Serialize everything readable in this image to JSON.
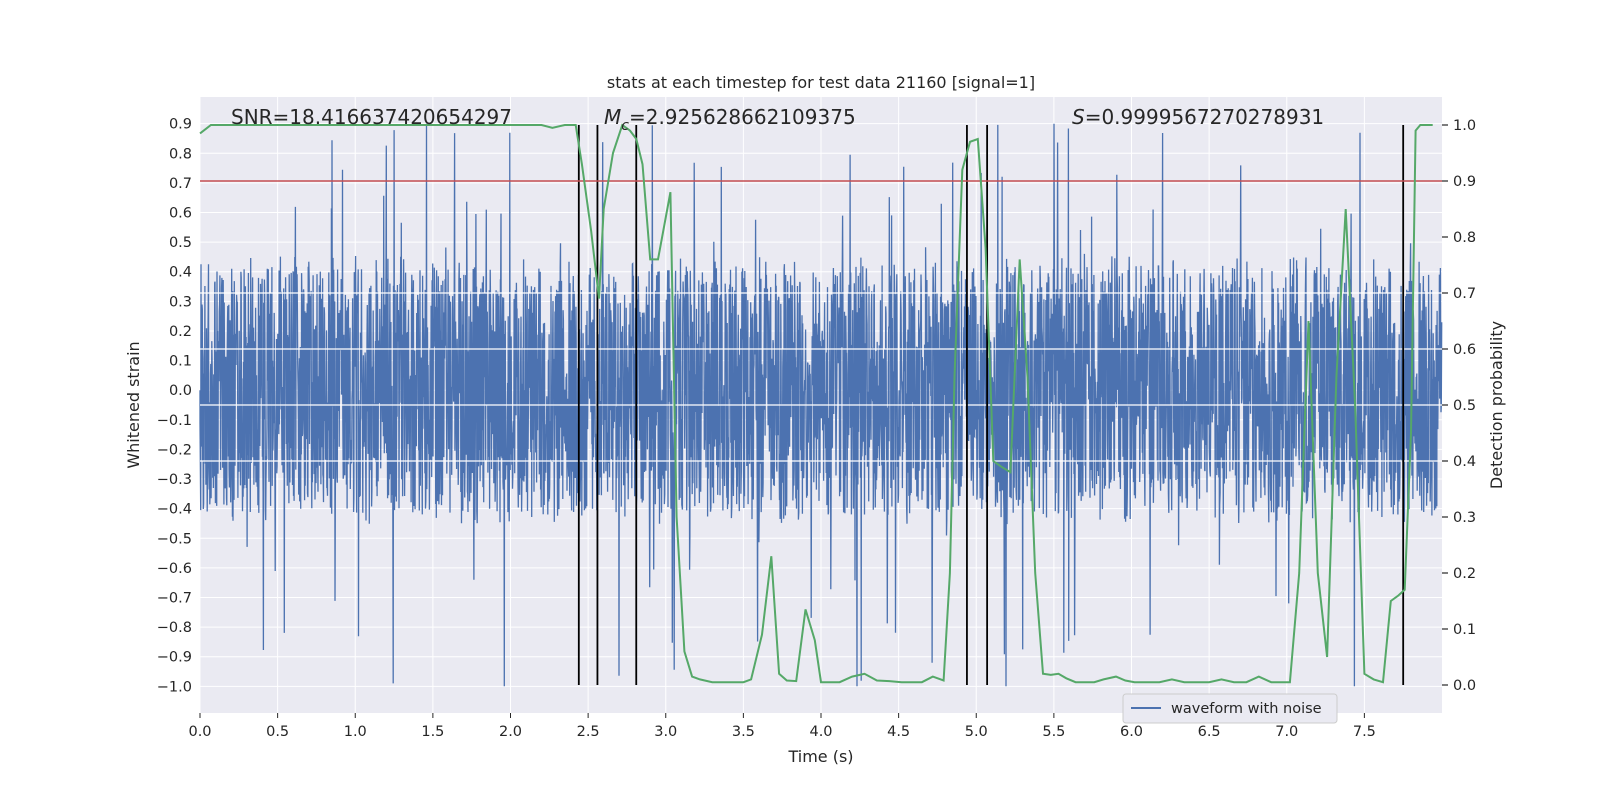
{
  "chart_data": {
    "type": "line",
    "title": "stats at each timestep for test data 21160 [signal=1]",
    "xlabel": "Time (s)",
    "ylabel_left": "Whitened strain",
    "ylabel_right": "Detection probability",
    "xlim": [
      0.0,
      8.0
    ],
    "ylim_left": [
      -1.09,
      0.99
    ],
    "ylim_right": [
      -0.05,
      1.05
    ],
    "xticks": [
      "0.0",
      "0.5",
      "1.0",
      "1.5",
      "2.0",
      "2.5",
      "3.0",
      "3.5",
      "4.0",
      "4.5",
      "5.0",
      "5.5",
      "6.0",
      "6.5",
      "7.0",
      "7.5"
    ],
    "yticks_left": [
      "0.9",
      "0.8",
      "0.7",
      "0.6",
      "0.5",
      "0.4",
      "0.3",
      "0.2",
      "0.1",
      "0.0",
      "−0.1",
      "−0.2",
      "−0.3",
      "−0.4",
      "−0.5",
      "−0.6",
      "−0.7",
      "−0.8",
      "−0.9",
      "−1.0"
    ],
    "yticks_right": [
      "1.0",
      "0.9",
      "0.8",
      "0.7",
      "0.6",
      "0.5",
      "0.4",
      "0.3",
      "0.2",
      "0.1",
      "0.0"
    ],
    "annotations": {
      "snr": "SNR=18.416637420654297",
      "mc_symbol": "M",
      "mc_sub": "c",
      "mc_value": "=2.925628662109375",
      "s_symbol": "S",
      "s_value": "=0.9999567270278931"
    },
    "threshold": {
      "value": 0.9,
      "axis": "right",
      "color": "#c44e52"
    },
    "vertical_lines": [
      2.44,
      2.56,
      2.81,
      4.94,
      5.07,
      7.75
    ],
    "waveform": {
      "name": "waveform with noise",
      "color": "#4c72b0",
      "note": "dense noise band, core roughly −0.42..0.42 with spikes up to about 0.9 and down to about −1.0"
    },
    "probability": {
      "color": "#55a868",
      "x": [
        0.0,
        0.07,
        0.2,
        0.4,
        0.6,
        0.8,
        1.0,
        1.2,
        1.4,
        1.6,
        1.8,
        2.0,
        2.2,
        2.27,
        2.35,
        2.42,
        2.46,
        2.52,
        2.57,
        2.6,
        2.66,
        2.72,
        2.77,
        2.81,
        2.85,
        2.9,
        2.95,
        2.99,
        3.03,
        3.07,
        3.12,
        3.17,
        3.22,
        3.3,
        3.4,
        3.5,
        3.55,
        3.62,
        3.68,
        3.73,
        3.78,
        3.84,
        3.9,
        3.96,
        4.0,
        4.06,
        4.12,
        4.2,
        4.28,
        4.36,
        4.44,
        4.52,
        4.58,
        4.65,
        4.72,
        4.79,
        4.83,
        4.86,
        4.91,
        4.96,
        5.01,
        5.06,
        5.11,
        5.16,
        5.22,
        5.28,
        5.33,
        5.38,
        5.43,
        5.48,
        5.53,
        5.58,
        5.64,
        5.7,
        5.76,
        5.82,
        5.9,
        5.96,
        6.02,
        6.1,
        6.18,
        6.26,
        6.34,
        6.42,
        6.5,
        6.58,
        6.66,
        6.74,
        6.82,
        6.9,
        6.96,
        7.02,
        7.08,
        7.14,
        7.2,
        7.26,
        7.32,
        7.38,
        7.44,
        7.5,
        7.56,
        7.62,
        7.67,
        7.72,
        7.76,
        7.8,
        7.83,
        7.86,
        7.9,
        7.94
      ],
      "values": [
        0.985,
        1.0,
        1.0,
        1.0,
        1.0,
        1.0,
        1.0,
        1.0,
        1.0,
        1.0,
        1.0,
        1.0,
        1.0,
        0.995,
        1.0,
        1.0,
        0.93,
        0.81,
        0.69,
        0.85,
        0.95,
        1.0,
        0.99,
        0.975,
        0.93,
        0.76,
        0.76,
        0.82,
        0.88,
        0.3,
        0.06,
        0.015,
        0.01,
        0.005,
        0.005,
        0.005,
        0.01,
        0.09,
        0.23,
        0.02,
        0.008,
        0.007,
        0.135,
        0.08,
        0.005,
        0.005,
        0.005,
        0.015,
        0.02,
        0.008,
        0.007,
        0.005,
        0.005,
        0.005,
        0.015,
        0.008,
        0.2,
        0.55,
        0.92,
        0.97,
        0.975,
        0.78,
        0.4,
        0.39,
        0.38,
        0.76,
        0.55,
        0.2,
        0.02,
        0.018,
        0.02,
        0.012,
        0.005,
        0.005,
        0.005,
        0.01,
        0.015,
        0.008,
        0.005,
        0.005,
        0.005,
        0.01,
        0.005,
        0.005,
        0.005,
        0.01,
        0.005,
        0.005,
        0.015,
        0.005,
        0.005,
        0.005,
        0.2,
        0.65,
        0.2,
        0.05,
        0.55,
        0.85,
        0.5,
        0.02,
        0.01,
        0.005,
        0.15,
        0.16,
        0.17,
        0.45,
        0.99,
        1.0,
        1.0,
        1.0
      ]
    }
  },
  "legend": {
    "label": "waveform with noise"
  }
}
